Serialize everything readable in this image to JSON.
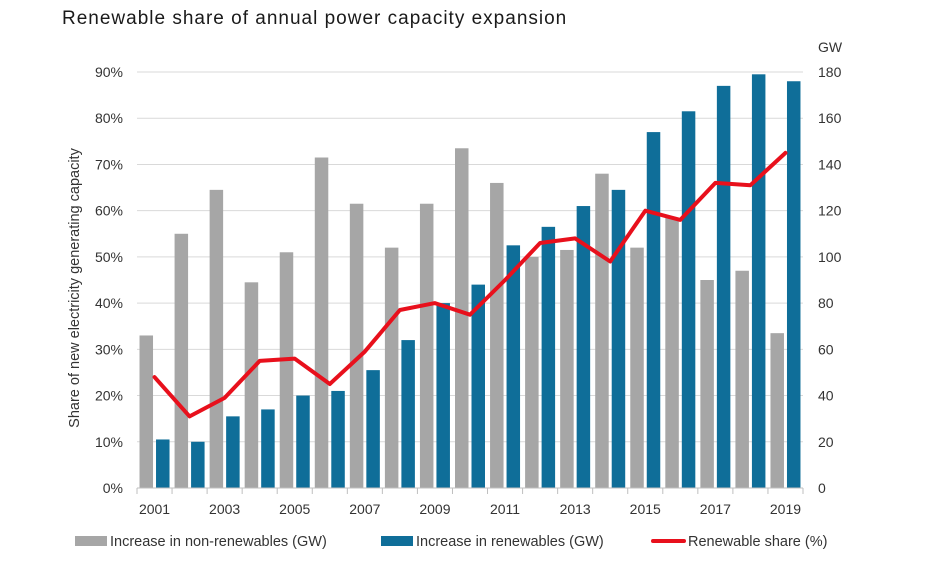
{
  "chart_data": {
    "type": "bar",
    "title": "Renewable share of annual power capacity expansion",
    "ylabel_left": "Share of new electricity generating capacity",
    "ylabel_right_unit": "GW",
    "years": [
      2001,
      2002,
      2003,
      2004,
      2005,
      2006,
      2007,
      2008,
      2009,
      2010,
      2011,
      2012,
      2013,
      2014,
      2015,
      2016,
      2017,
      2018,
      2019
    ],
    "x_tick_labels": [
      "2001",
      "2003",
      "2005",
      "2007",
      "2009",
      "2011",
      "2013",
      "2015",
      "2017",
      "2019"
    ],
    "left_axis": {
      "min": 0,
      "max": 90,
      "step": 10,
      "ticks": [
        "0%",
        "10%",
        "20%",
        "30%",
        "40%",
        "50%",
        "60%",
        "70%",
        "80%",
        "90%"
      ]
    },
    "right_axis": {
      "min": 0,
      "max": 180,
      "step": 20,
      "ticks": [
        "0",
        "20",
        "40",
        "60",
        "80",
        "100",
        "120",
        "140",
        "160",
        "180"
      ]
    },
    "grid": true,
    "legend_position": "bottom",
    "series": [
      {
        "name": "Increase in non-renewables (GW)",
        "kind": "bar",
        "axis": "right",
        "color": "#a6a6a6",
        "values": [
          66,
          110,
          129,
          89,
          102,
          143,
          123,
          104,
          123,
          147,
          132,
          100,
          103,
          136,
          104,
          117,
          90,
          94,
          67
        ]
      },
      {
        "name": "Increase in renewables (GW)",
        "kind": "bar",
        "axis": "right",
        "color": "#0f6e99",
        "values": [
          21,
          20,
          31,
          34,
          40,
          42,
          51,
          64,
          80,
          88,
          105,
          113,
          122,
          129,
          154,
          163,
          174,
          179,
          176
        ]
      },
      {
        "name": "Renewable share (%)",
        "kind": "line",
        "axis": "left",
        "color": "#e8101c",
        "values": [
          24,
          15.5,
          19.5,
          27.5,
          28,
          22.5,
          29.5,
          38.5,
          40,
          37.5,
          45,
          53,
          54,
          49,
          60,
          58,
          66,
          65.5,
          72.5
        ]
      }
    ]
  }
}
